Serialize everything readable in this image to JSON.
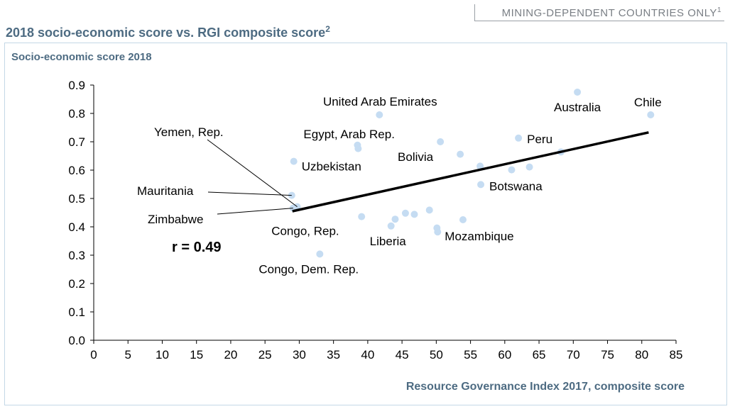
{
  "header": {
    "tag": "MINING-DEPENDENT COUNTRIES ONLY",
    "tag_sup": "1",
    "title": "2018 socio-economic score vs. RGI composite score",
    "title_sup": "2"
  },
  "colors": {
    "point": "#c5dcf2",
    "trend": "#000000",
    "label_title": "#4d6b82",
    "frame": "#c4d8e6"
  },
  "chart_data": {
    "type": "scatter",
    "title": "2018 socio-economic score vs. RGI composite score",
    "xlabel": "Resource Governance Index 2017, composite score",
    "ylabel": "Socio-economic score 2018",
    "xlim": [
      0,
      85
    ],
    "ylim": [
      0,
      0.9
    ],
    "xticks": [
      "0",
      "5",
      "10",
      "15",
      "20",
      "25",
      "30",
      "35",
      "40",
      "45",
      "50",
      "55",
      "60",
      "65",
      "70",
      "75",
      "80",
      "85"
    ],
    "yticks": [
      "0.0",
      "0.1",
      "0.2",
      "0.3",
      "0.4",
      "0.5",
      "0.6",
      "0.7",
      "0.8",
      "0.9"
    ],
    "grid": false,
    "correlation_label": "r = 0.49",
    "trendline": {
      "x": [
        29,
        81
      ],
      "y": [
        0.455,
        0.733
      ]
    },
    "points": [
      {
        "x": 70.6,
        "y": 0.875,
        "label": "Australia"
      },
      {
        "x": 81.3,
        "y": 0.795,
        "label": "Chile"
      },
      {
        "x": 41.7,
        "y": 0.795,
        "label": "United Arab Emirates"
      },
      {
        "x": 62.0,
        "y": 0.713,
        "label": "Peru"
      },
      {
        "x": 50.6,
        "y": 0.7,
        "label": "Bolivia"
      },
      {
        "x": 38.5,
        "y": 0.688,
        "label": "Egypt, Arab Rep."
      },
      {
        "x": 38.6,
        "y": 0.676,
        "label": ""
      },
      {
        "x": 53.5,
        "y": 0.656,
        "label": ""
      },
      {
        "x": 68.2,
        "y": 0.664,
        "label": ""
      },
      {
        "x": 29.2,
        "y": 0.631,
        "label": "Uzbekistan"
      },
      {
        "x": 56.4,
        "y": 0.614,
        "label": ""
      },
      {
        "x": 63.6,
        "y": 0.611,
        "label": ""
      },
      {
        "x": 61.0,
        "y": 0.601,
        "label": ""
      },
      {
        "x": 56.5,
        "y": 0.549,
        "label": "Botswana"
      },
      {
        "x": 28.9,
        "y": 0.511,
        "label": "Mauritania"
      },
      {
        "x": 29.7,
        "y": 0.471,
        "label": "Yemen, Rep."
      },
      {
        "x": 29.1,
        "y": 0.466,
        "label": "Zimbabwe"
      },
      {
        "x": 49.0,
        "y": 0.459,
        "label": ""
      },
      {
        "x": 45.5,
        "y": 0.448,
        "label": ""
      },
      {
        "x": 46.8,
        "y": 0.444,
        "label": ""
      },
      {
        "x": 39.1,
        "y": 0.436,
        "label": "Congo, Rep."
      },
      {
        "x": 44.0,
        "y": 0.427,
        "label": ""
      },
      {
        "x": 53.9,
        "y": 0.425,
        "label": ""
      },
      {
        "x": 43.4,
        "y": 0.403,
        "label": "Liberia"
      },
      {
        "x": 50.1,
        "y": 0.396,
        "label": ""
      },
      {
        "x": 50.2,
        "y": 0.382,
        "label": "Mozambique"
      },
      {
        "x": 33.0,
        "y": 0.304,
        "label": "Congo, Dem. Rep."
      }
    ]
  }
}
